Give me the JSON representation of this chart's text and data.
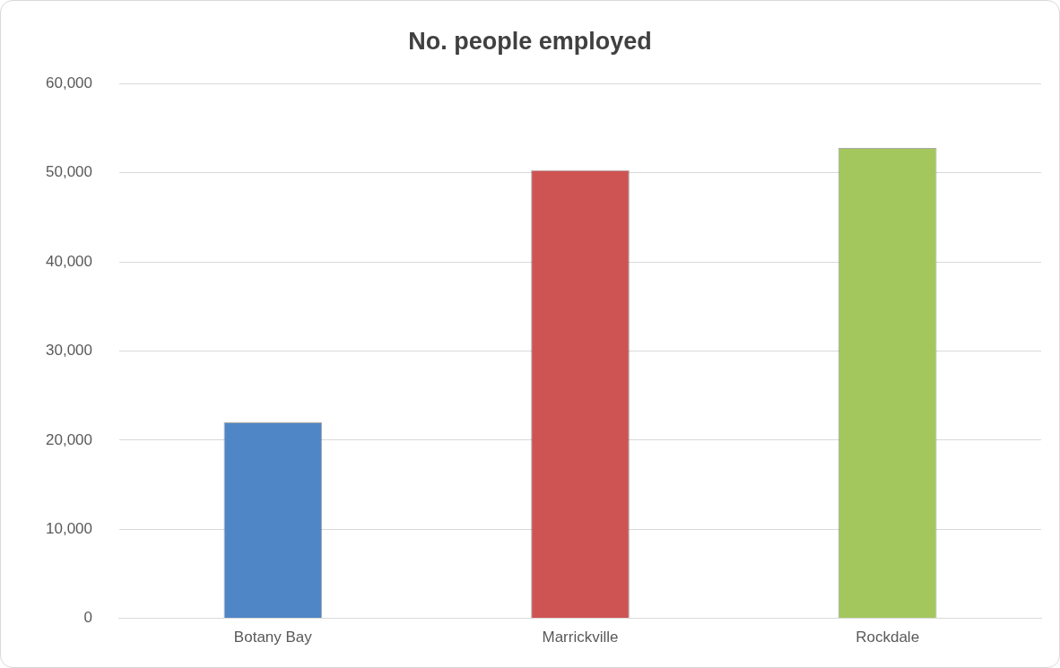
{
  "chart_data": {
    "type": "bar",
    "title": "No. people employed",
    "categories": [
      "Botany Bay",
      "Marrickville",
      "Rockdale"
    ],
    "values": [
      22000,
      50300,
      52800
    ],
    "colors": [
      "#4f86c6",
      "#cd5452",
      "#a3c75d"
    ],
    "ylim": [
      0,
      60000
    ],
    "yticks": [
      0,
      {
        "value": 10000,
        "label": "10,000"
      },
      {
        "value": 20000,
        "label": "20,000"
      },
      {
        "value": 30000,
        "label": "30,000"
      },
      {
        "value": 40000,
        "label": "40,000"
      },
      {
        "value": 50000,
        "label": "50,000"
      },
      {
        "value": 60000,
        "label": "60,000"
      }
    ],
    "grid": "y",
    "legend": false
  }
}
